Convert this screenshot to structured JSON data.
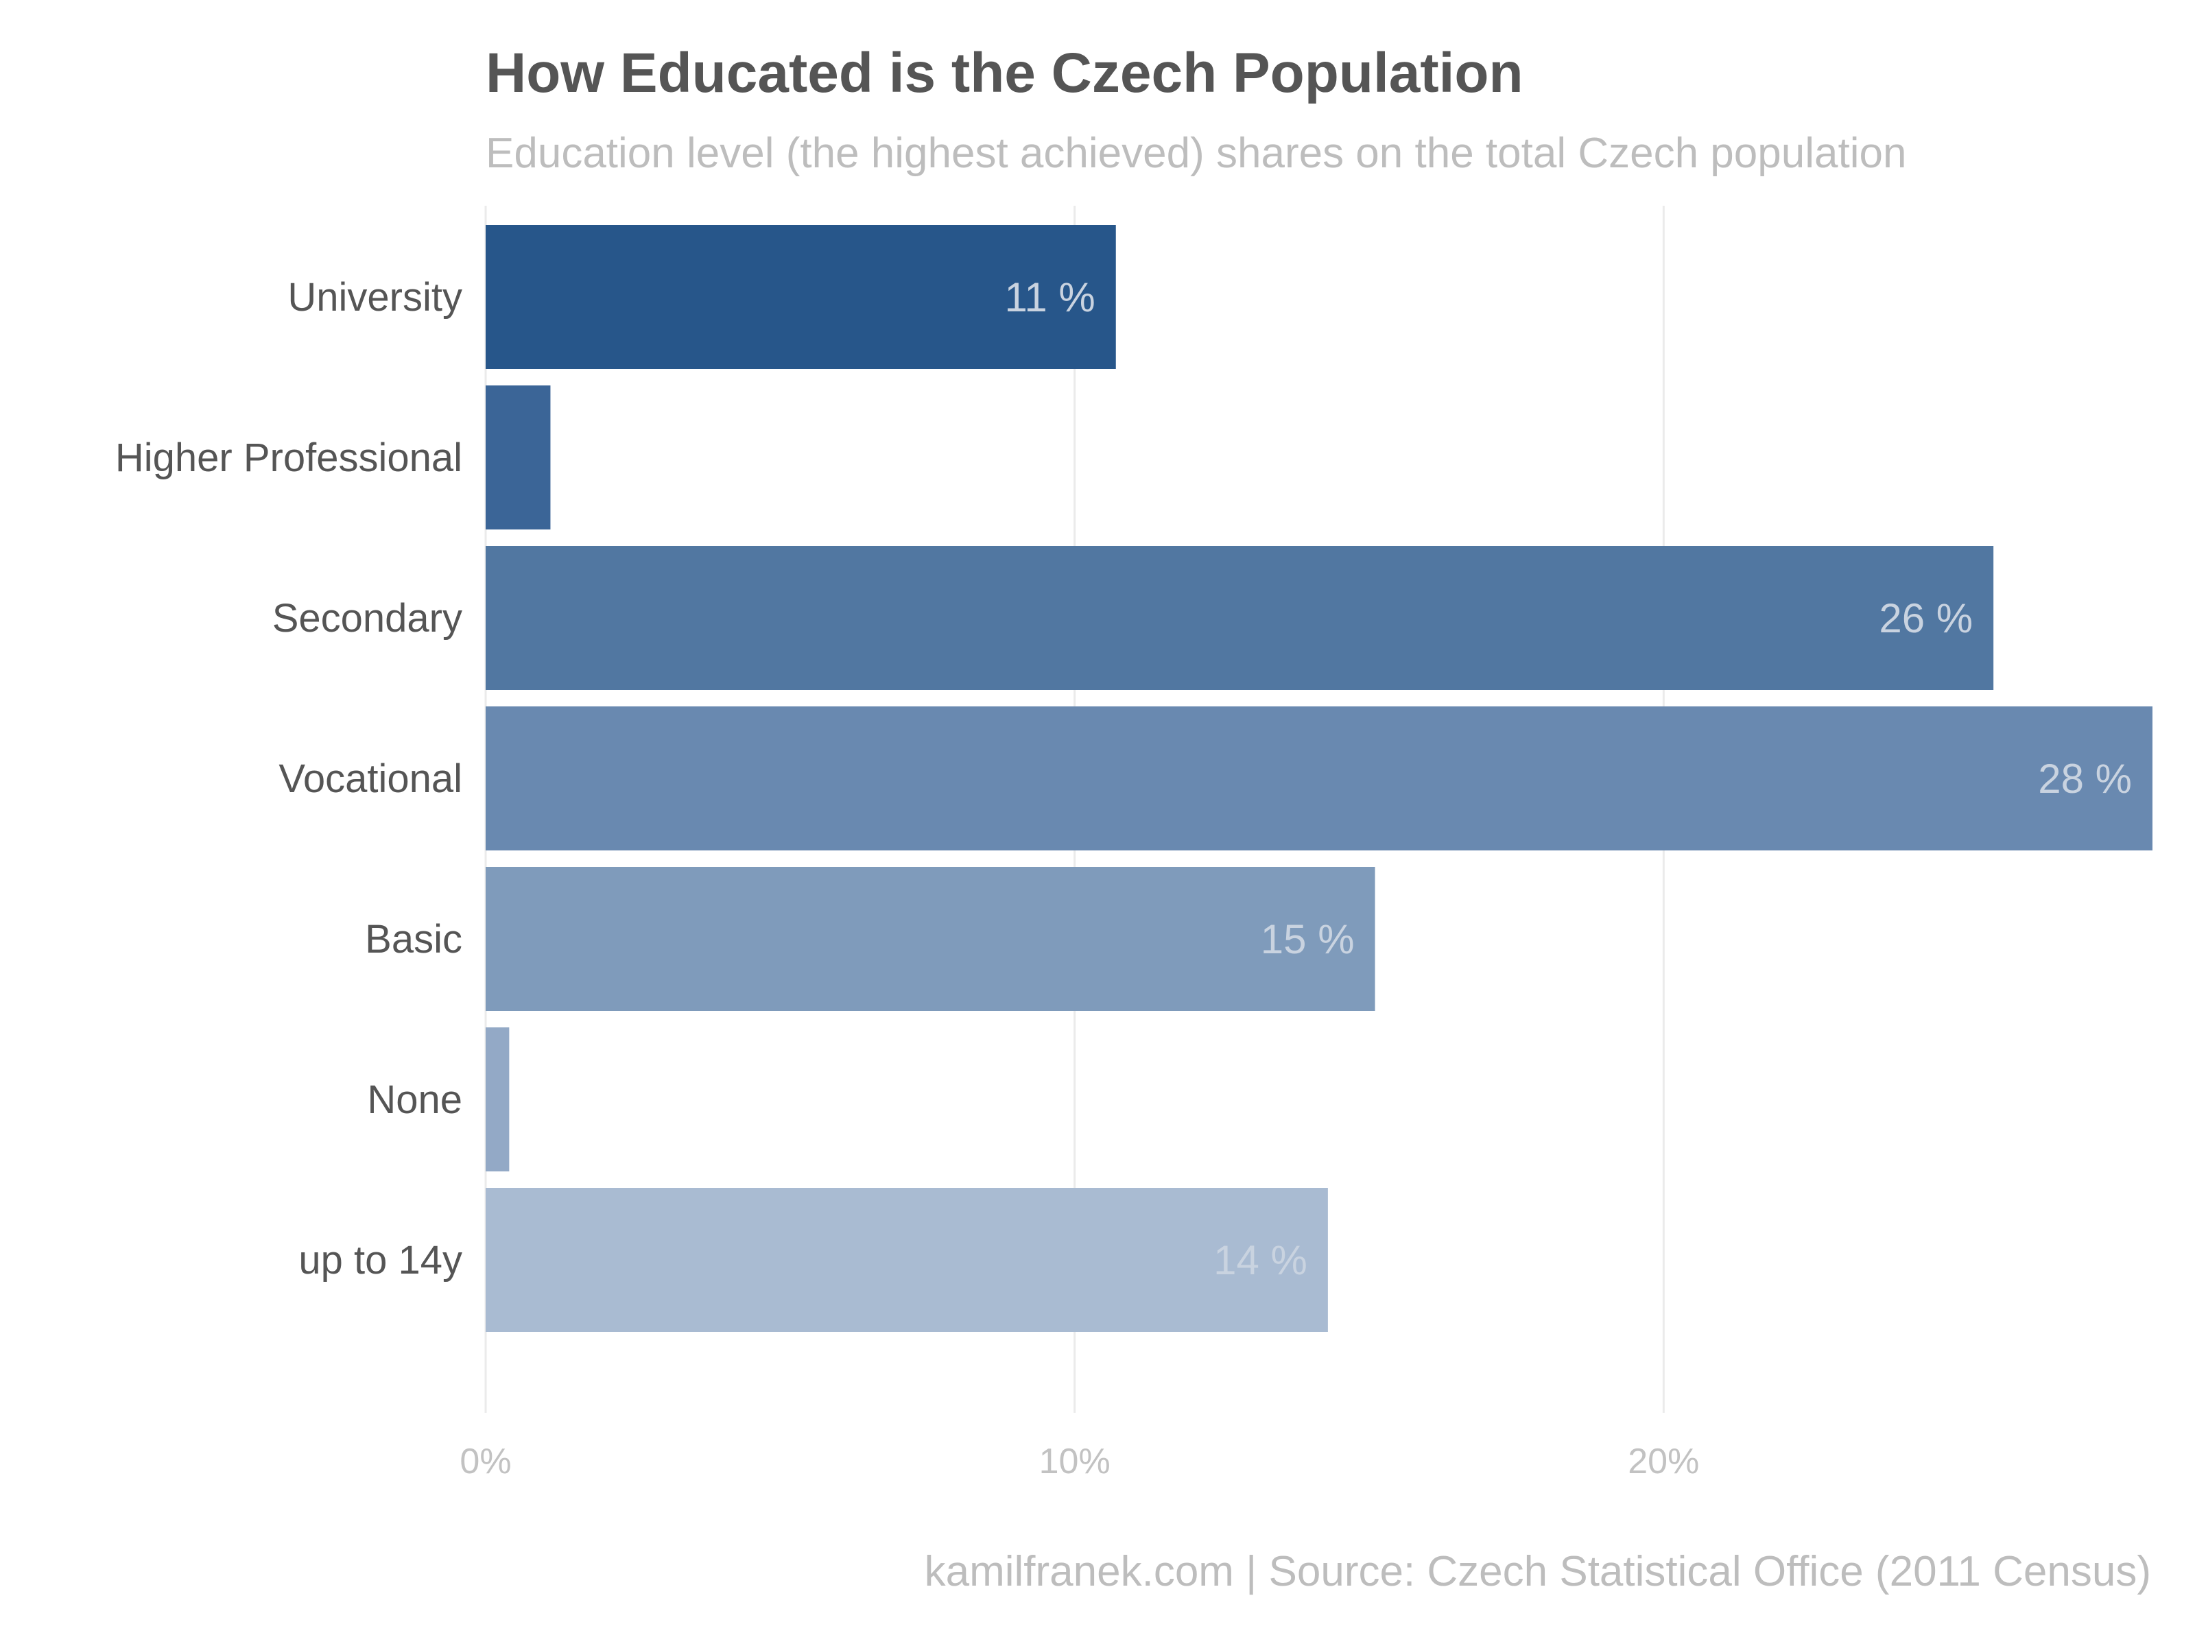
{
  "chart_data": {
    "type": "bar",
    "orientation": "horizontal",
    "title": "How Educated is the Czech Population",
    "subtitle": "Education level (the highest achieved) shares on the total Czech population",
    "caption": "kamilfranek.com  |  Source: Czech Statistical Office (2011 Census)",
    "categories": [
      "University",
      "Higher Professional",
      "Secondary",
      "Vocational",
      "Basic",
      "None",
      "up to 14y"
    ],
    "values": [
      10.7,
      1.1,
      25.6,
      28.3,
      15.1,
      0.4,
      14.3
    ],
    "data_labels": [
      "11 %",
      "",
      "26 %",
      "28 %",
      "15 %",
      "",
      "14 %"
    ],
    "colors": [
      "#27568a",
      "#3b6597",
      "#5177a1",
      "#6989b0",
      "#7f9bbb",
      "#93a9c6",
      "#a9bbd2"
    ],
    "data_label_color": "#c9d3e0",
    "x_ticks": [
      0,
      10,
      20
    ],
    "x_tick_labels": [
      "0%",
      "10%",
      "20%"
    ],
    "xlim": [
      0,
      28.3
    ],
    "xlabel": "",
    "ylabel": "",
    "grid": "vertical major",
    "legend": "none"
  }
}
